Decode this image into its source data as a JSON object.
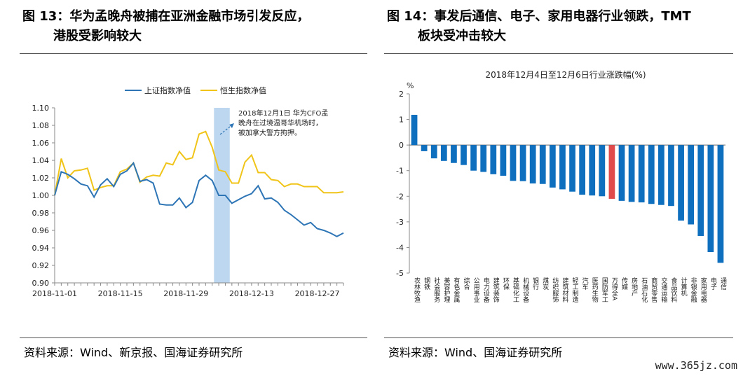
{
  "figure_left": {
    "title_line1": "图 13：华为孟晚舟被捕在亚洲金融市场引发反应，",
    "title_line2": "港股受影响较大",
    "source": "资料来源：Wind、新京报、国海证券研究所"
  },
  "figure_right": {
    "title_line1": "图 14：事发后通信、电子、家用电器行业领跌，TMT",
    "title_line2": "板块受冲击较大",
    "source": "资料来源：Wind、国海证券研究所"
  },
  "watermark": "www.365jz.com",
  "chart_data": [
    {
      "type": "line",
      "title": "",
      "xlabel": "",
      "ylabel": "",
      "ylim": [
        0.9,
        1.1
      ],
      "y_ticks": [
        "1.10",
        "1.08",
        "1.06",
        "1.04",
        "1.02",
        "1.00",
        "0.98",
        "0.96",
        "0.94",
        "0.92",
        "0.90"
      ],
      "x_tick_labels": [
        "2018-11-01",
        "2018-11-15",
        "2018-11-29",
        "2018-12-13",
        "2018-12-27"
      ],
      "legend_position": "top-left",
      "annotation": {
        "lines": [
          "2018年12月1日 华为CFO孟",
          "晚舟在过境温哥华机场时，",
          "被加拿大警方拘押。"
        ]
      },
      "highlight_band_dates": [
        "2018-12-03",
        "2018-12-05"
      ],
      "series": [
        {
          "name": "上证指数净值",
          "color": "#2e75b6",
          "values": [
            1.0,
            1.027,
            1.024,
            1.019,
            1.013,
            1.011,
            0.998,
            1.012,
            1.019,
            1.01,
            1.024,
            1.028,
            1.037,
            1.016,
            1.018,
            1.014,
            0.99,
            0.989,
            0.989,
            0.997,
            0.986,
            0.992,
            1.017,
            1.023,
            1.017,
            1.0,
            1.0,
            0.991,
            0.995,
            0.999,
            1.002,
            1.011,
            0.996,
            0.997,
            0.992,
            0.983,
            0.978,
            0.972,
            0.966,
            0.969,
            0.962,
            0.96,
            0.957,
            0.953,
            0.957
          ]
        },
        {
          "name": "恒生指数净值",
          "color": "#f0c419",
          "values": [
            1.0,
            1.042,
            1.02,
            1.028,
            1.029,
            1.031,
            1.006,
            1.009,
            1.011,
            1.011,
            1.027,
            1.03,
            1.037,
            1.015,
            1.021,
            1.023,
            1.022,
            1.037,
            1.035,
            1.05,
            1.041,
            1.043,
            1.07,
            1.073,
            1.055,
            1.029,
            1.027,
            1.014,
            1.014,
            1.038,
            1.046,
            1.026,
            1.026,
            1.018,
            1.017,
            1.01,
            1.013,
            1.013,
            1.01,
            1.01,
            1.01,
            1.003,
            1.003,
            1.003,
            1.004
          ]
        }
      ]
    },
    {
      "type": "bar",
      "title": "2018年12月4日至12月6日行业涨跌幅(%)",
      "xlabel": "",
      "ylabel": "%",
      "ylim": [
        -5,
        2
      ],
      "y_ticks": [
        "2",
        "1",
        "0",
        "-1",
        "-2",
        "-3",
        "-4",
        "-5"
      ],
      "bar_color": "#0f6fbf",
      "highlight_color": "#e04a4a",
      "highlight_category": "万得全A",
      "categories": [
        "农林牧渔",
        "钢铁",
        "社会服务",
        "美容护理",
        "有色金属",
        "综合",
        "公用事业",
        "电力设备",
        "建筑装饰",
        "环保",
        "基础化工",
        "机械设备",
        "银行",
        "煤炭",
        "纺织服饰",
        "建筑材料",
        "轻工制造",
        "汽车",
        "医药生物",
        "国防军工",
        "万得全A",
        "传媒",
        "房地产",
        "石油石化",
        "商贸零售",
        "交通运输",
        "食品饮料",
        "计算机",
        "非银金融",
        "家用电器",
        "电子",
        "通信"
      ],
      "values": [
        1.18,
        -0.24,
        -0.52,
        -0.62,
        -0.7,
        -0.78,
        -1.0,
        -1.05,
        -1.14,
        -1.2,
        -1.4,
        -1.41,
        -1.5,
        -1.52,
        -1.66,
        -1.73,
        -1.82,
        -1.94,
        -1.97,
        -2.0,
        -2.1,
        -2.18,
        -2.22,
        -2.24,
        -2.3,
        -2.34,
        -2.38,
        -2.95,
        -3.1,
        -3.55,
        -4.18,
        -4.6
      ]
    }
  ]
}
